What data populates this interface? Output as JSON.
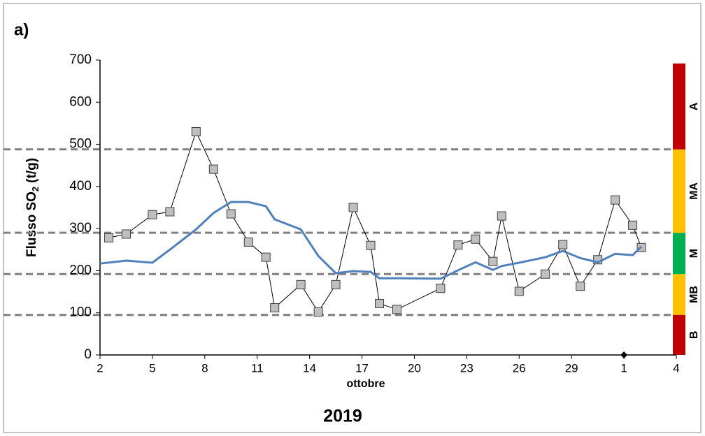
{
  "chart_data": {
    "type": "line",
    "panel_label": "a)",
    "title": "2019",
    "x_label": "ottobre",
    "y_label": {
      "main": "Flusso SO",
      "sub": "2",
      "unit": "(t/g)"
    },
    "xlim": [
      2,
      35
    ],
    "xticks": [
      2,
      5,
      8,
      11,
      14,
      17,
      20,
      23,
      26,
      29,
      {
        "value": 32,
        "label": "1"
      },
      {
        "value": 35,
        "label": "4"
      }
    ],
    "ylim": [
      0,
      700
    ],
    "yticks": [
      0,
      100,
      200,
      300,
      400,
      500,
      600,
      700
    ],
    "series": [
      {
        "style": "markers",
        "color": "#bfbfbf",
        "x": [
          2.5,
          3.5,
          5,
          6,
          7.5,
          8.5,
          9.5,
          10.5,
          11.5,
          12,
          13.5,
          14.5,
          15.5,
          16.5,
          17.5,
          18,
          19,
          21.5,
          22.5,
          23.5,
          24.5,
          25,
          26,
          27.5,
          28.5,
          29.5,
          30.5,
          31.5,
          32.5,
          33
        ],
        "values": [
          278,
          287,
          333,
          340,
          530,
          441,
          335,
          268,
          232,
          112,
          167,
          102,
          167,
          350,
          260,
          122,
          108,
          158,
          261,
          275,
          222,
          330,
          151,
          192,
          262,
          163,
          226,
          368,
          308,
          255
        ]
      },
      {
        "style": "line",
        "color": "#4f81bd",
        "x": [
          2,
          3.5,
          5,
          6,
          7.5,
          8.5,
          9.5,
          10.5,
          11.5,
          12,
          13.5,
          14.5,
          15.5,
          16.5,
          17.5,
          18,
          19,
          21.5,
          22.5,
          23.5,
          24.5,
          25,
          26,
          27.5,
          28.5,
          29.5,
          30.5,
          31.5,
          32.5,
          33
        ],
        "values": [
          217,
          224,
          219,
          250,
          298,
          337,
          363,
          363,
          353,
          322,
          298,
          235,
          194,
          199,
          197,
          182,
          182,
          181,
          201,
          220,
          202,
          211,
          219,
          232,
          247,
          230,
          220,
          240,
          237,
          257
        ]
      }
    ],
    "bands": [
      {
        "label": "B",
        "ymin": 0,
        "ymax": 95,
        "color": "#c00000"
      },
      {
        "label": "MB",
        "ymin": 95,
        "ymax": 192,
        "color": "#ffc000"
      },
      {
        "label": "M",
        "ymin": 192,
        "ymax": 290,
        "color": "#00b050"
      },
      {
        "label": "MA",
        "ymin": 290,
        "ymax": 488,
        "color": "#ffc000"
      },
      {
        "label": "A",
        "ymin": 488,
        "ymax": 692,
        "color": "#c00000"
      }
    ],
    "markers": [
      {
        "x": 32,
        "y": 0
      }
    ]
  }
}
